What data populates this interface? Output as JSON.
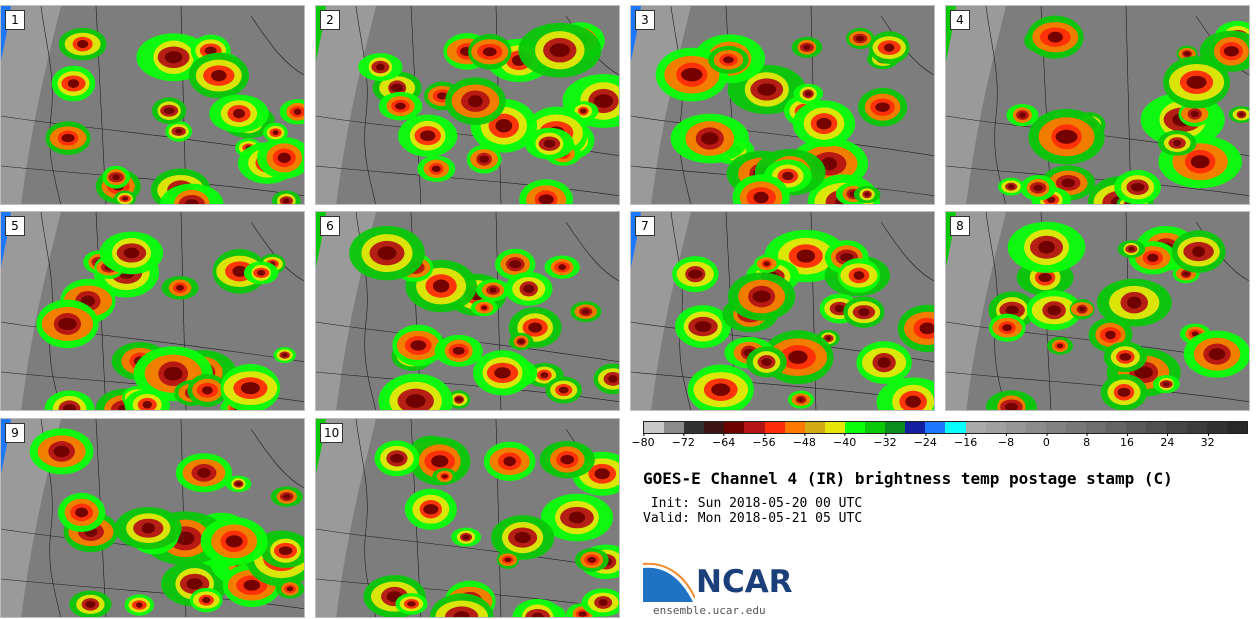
{
  "panels": [
    {
      "label": "1"
    },
    {
      "label": "2"
    },
    {
      "label": "3"
    },
    {
      "label": "4"
    },
    {
      "label": "5"
    },
    {
      "label": "6"
    },
    {
      "label": "7"
    },
    {
      "label": "8"
    },
    {
      "label": "9"
    },
    {
      "label": "10"
    }
  ],
  "colorbar": {
    "colors": [
      "#c8c8c8",
      "#8c8c8c",
      "#323232",
      "#3c1414",
      "#6e0000",
      "#b41414",
      "#ff2d0a",
      "#ff7800",
      "#d2aa14",
      "#e6e60a",
      "#0aff0a",
      "#0ac80a",
      "#0a8c1e",
      "#141ea0",
      "#1e78ff",
      "#0affff",
      "#aaaaaa",
      "#a0a0a0",
      "#969696",
      "#8c8c8c",
      "#828282",
      "#787878",
      "#6e6e6e",
      "#646464",
      "#5a5a5a",
      "#505050",
      "#464646",
      "#3c3c3c",
      "#323232",
      "#282828"
    ],
    "min": -80,
    "max": 40,
    "ticks": [
      "−80",
      "−72",
      "−64",
      "−56",
      "−48",
      "−40",
      "−32",
      "−24",
      "−16",
      "−8",
      "0",
      "8",
      "16",
      "24",
      "32"
    ]
  },
  "title": "GOES-E Channel 4 (IR) brightness temp postage stamp (C)",
  "init": " Init: Sun 2018-05-20 00 UTC",
  "valid": "Valid: Mon 2018-05-21 05 UTC",
  "logo": {
    "text": "NCAR",
    "url": "ensemble.ucar.edu"
  }
}
